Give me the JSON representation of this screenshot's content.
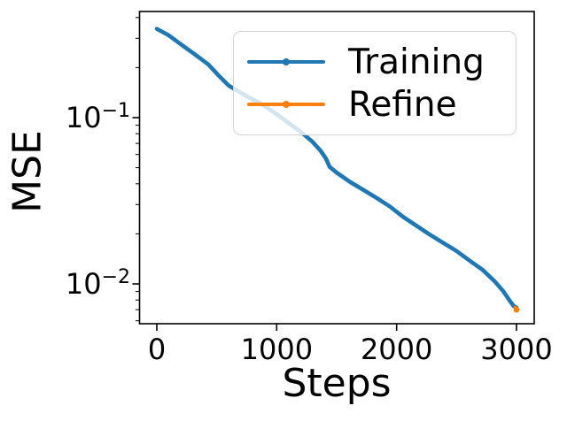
{
  "figure": {
    "xlabel": "Steps",
    "ylabel": "MSE",
    "background_color": "#ffffff",
    "spine_color": "#000000",
    "tick_color": "#000000"
  },
  "legend": {
    "position": "upper right",
    "items": [
      {
        "label": "Training",
        "color": "#1f77b4",
        "marker": "dot-on-line"
      },
      {
        "label": "Refine",
        "color": "#ff7f0e",
        "marker": "dot-on-line"
      }
    ]
  },
  "chart_data": {
    "type": "line",
    "title": "",
    "xlabel": "Steps",
    "ylabel": "MSE",
    "xscale": "linear",
    "yscale": "log",
    "xlim": [
      -150,
      3150
    ],
    "ylim": [
      0.00578,
      0.435
    ],
    "grid": false,
    "legend_position": "upper right",
    "x_ticks": [
      0,
      1000,
      2000,
      3000
    ],
    "y_ticks": [
      {
        "label_base": "10",
        "label_exp": "−1",
        "value": 0.1
      },
      {
        "label_base": "10",
        "label_exp": "−2",
        "value": 0.01
      }
    ],
    "series": [
      {
        "name": "Training",
        "color": "#1f77b4",
        "line_width": 4.6,
        "end_marker": false,
        "steps": [
          0,
          96,
          207,
          318,
          429,
          525,
          599,
          672,
          761,
          872,
          983,
          1094,
          1205,
          1293,
          1367,
          1412,
          1441,
          1500,
          1611,
          1722,
          1833,
          1944,
          2054,
          2165,
          2276,
          2387,
          2498,
          2609,
          2720,
          2816,
          2890,
          2941,
          2978,
          3000
        ],
        "mse": [
          0.342,
          0.314,
          0.274,
          0.24,
          0.209,
          0.176,
          0.156,
          0.145,
          0.133,
          0.121,
          0.107,
          0.0935,
          0.0816,
          0.0722,
          0.0631,
          0.0565,
          0.0506,
          0.0467,
          0.0411,
          0.0368,
          0.0329,
          0.0292,
          0.0253,
          0.0224,
          0.0198,
          0.0177,
          0.0158,
          0.0138,
          0.0121,
          0.0104,
          0.00903,
          0.00797,
          0.00734,
          0.0072
        ]
      },
      {
        "name": "Refine",
        "color": "#ff7f0e",
        "line_width": 3.5,
        "end_marker": true,
        "steps": [
          2988,
          3000
        ],
        "mse": [
          0.00722,
          0.007
        ]
      }
    ]
  }
}
